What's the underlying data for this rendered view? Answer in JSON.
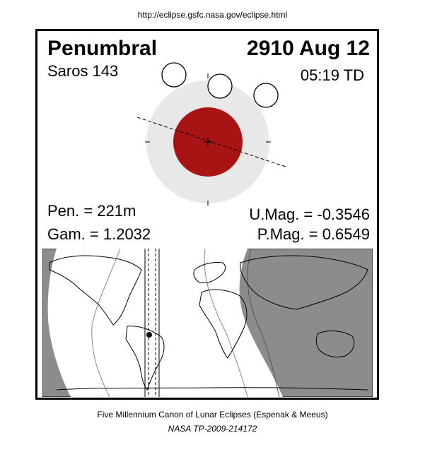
{
  "header": {
    "url": "http://eclipse.gsfc.nasa.gov/eclipse.html"
  },
  "eclipse": {
    "type": "Penumbral",
    "date": "2910 Aug 12",
    "saros": "Saros 143",
    "time": "05:19 TD",
    "pen_duration": "Pen. = 221m",
    "gamma": "Gam. = 1.2032",
    "umbral_mag": "U.Mag. = -0.3546",
    "penumbral_mag": "P.Mag. = 0.6549"
  },
  "colors": {
    "umbra": "#a81414",
    "penumbra": "#e8e8e8",
    "night": "#8c8c8c",
    "day": "#ffffff"
  },
  "footer": {
    "canon": "Five Millennium Canon of Lunar Eclipses (Espenak & Meeus)",
    "publication": "NASA TP-2009-214172"
  }
}
